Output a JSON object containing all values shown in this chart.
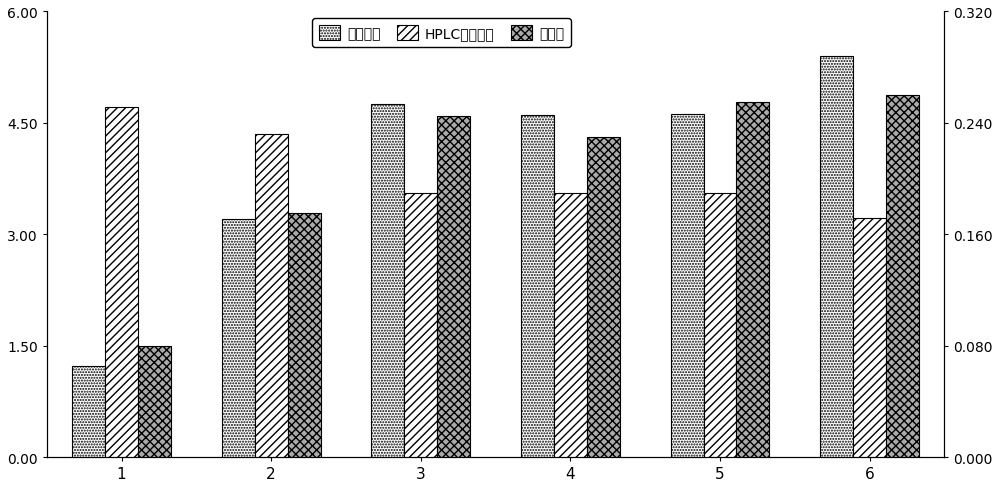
{
  "categories": [
    "1",
    "2",
    "3",
    "4",
    "5",
    "6"
  ],
  "bio_potency": [
    1.22,
    3.2,
    4.75,
    4.6,
    4.62,
    5.4
  ],
  "hplc_potency": [
    4.72,
    4.35,
    3.55,
    3.55,
    3.55,
    3.22
  ],
  "absorbance": [
    0.08,
    0.175,
    0.245,
    0.23,
    0.255,
    0.26
  ],
  "left_ylim": [
    0.0,
    6.0
  ],
  "right_ylim": [
    0.0,
    0.32
  ],
  "left_yticks": [
    0.0,
    1.5,
    3.0,
    4.5,
    6.0
  ],
  "right_yticks": [
    0.0,
    0.08,
    0.16,
    0.24,
    0.32
  ],
  "legend_labels": [
    "生物效价",
    "HPLC检测效价",
    "吸光度"
  ],
  "bar_width": 0.22,
  "figsize": [
    10.0,
    4.89
  ],
  "dpi": 100
}
